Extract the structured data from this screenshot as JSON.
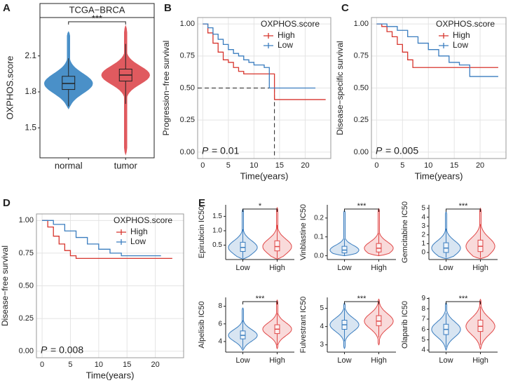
{
  "chart_data": [
    {
      "type": "violin",
      "panel": "A",
      "title": "TCGA−BRCA",
      "y_label": "OXPHOS.score",
      "categories": [
        "normal",
        "tumor"
      ],
      "colors": [
        "#4a90c8",
        "#e05a5f"
      ],
      "fill_opacity": 1,
      "boxes": [
        {
          "low": 1.68,
          "q1": 1.82,
          "median": 1.87,
          "q3": 1.93,
          "high": 2.08
        },
        {
          "low": 1.7,
          "q1": 1.89,
          "median": 1.94,
          "q3": 1.99,
          "high": 2.2
        }
      ],
      "extent": [
        [
          1.66,
          2.3
        ],
        [
          1.28,
          2.35
        ]
      ],
      "significance": "***",
      "ylim": [
        1.25,
        2.42
      ],
      "yticks": [
        1.5,
        1.8,
        2.1
      ]
    },
    {
      "type": "survival",
      "panel": "B",
      "y_label": "Progression−free survival",
      "x_label": "Time(years)",
      "legend_title": "OXPHOS.score",
      "series": [
        {
          "name": "High",
          "color": "#d7352d",
          "x": [
            0,
            1,
            2,
            3,
            4,
            5,
            6,
            7,
            8,
            10,
            12,
            14,
            24
          ],
          "values": [
            1,
            0.93,
            0.85,
            0.78,
            0.72,
            0.7,
            0.66,
            0.63,
            0.61,
            0.61,
            0.61,
            0.41,
            0.41
          ]
        },
        {
          "name": "Low",
          "color": "#3a7dbf",
          "x": [
            0,
            1,
            2,
            3,
            4,
            5,
            6,
            7,
            8,
            9,
            10,
            12,
            13,
            22
          ],
          "values": [
            1,
            0.97,
            0.92,
            0.88,
            0.84,
            0.8,
            0.77,
            0.75,
            0.72,
            0.7,
            0.68,
            0.66,
            0.5,
            0.5
          ]
        }
      ],
      "p_symbol": "P",
      "p_text": "= 0.01",
      "median_x": 14,
      "median_y": 0.5,
      "xlim": [
        -1,
        25
      ],
      "ylim": [
        -0.05,
        1.05
      ],
      "xticks": [
        0,
        5,
        10,
        15,
        20
      ],
      "yticks": [
        {
          "value": 0,
          "label": "0.00"
        },
        {
          "value": 0.25,
          "label": "0.25"
        },
        {
          "value": 0.5,
          "label": "0.50"
        },
        {
          "value": 0.75,
          "label": "0.75"
        },
        {
          "value": 1,
          "label": "1.00"
        }
      ]
    },
    {
      "type": "survival",
      "panel": "C",
      "y_label": "Disease−specific survival",
      "x_label": "Time(years)",
      "legend_title": "OXPHOS.score",
      "series": [
        {
          "name": "High",
          "color": "#d7352d",
          "x": [
            0,
            1,
            2,
            3,
            4,
            5,
            6,
            7,
            8,
            12,
            23.5
          ],
          "values": [
            1,
            0.98,
            0.94,
            0.9,
            0.84,
            0.78,
            0.72,
            0.66,
            0.66,
            0.66,
            0.66
          ]
        },
        {
          "name": "Low",
          "color": "#3a7dbf",
          "x": [
            0,
            2,
            4,
            6,
            8,
            10,
            12,
            14,
            16,
            18,
            23.5
          ],
          "values": [
            1,
            0.98,
            0.95,
            0.9,
            0.85,
            0.8,
            0.75,
            0.7,
            0.68,
            0.59,
            0.59
          ]
        }
      ],
      "p_symbol": "P",
      "p_text": "= 0.005",
      "xlim": [
        -1,
        25
      ],
      "ylim": [
        -0.05,
        1.05
      ],
      "xticks": [
        0,
        5,
        10,
        15,
        20
      ],
      "yticks": [
        {
          "value": 0,
          "label": "0.00"
        },
        {
          "value": 0.25,
          "label": "0.25"
        },
        {
          "value": 0.5,
          "label": "0.50"
        },
        {
          "value": 0.75,
          "label": "0.75"
        },
        {
          "value": 1,
          "label": "1.00"
        }
      ]
    },
    {
      "type": "survival",
      "panel": "D",
      "y_label": "Disease−free survival",
      "x_label": "Time(years)",
      "legend_title": "OXPHOS.score",
      "series": [
        {
          "name": "High",
          "color": "#d7352d",
          "x": [
            0,
            1,
            2,
            3,
            4,
            5,
            6,
            23
          ],
          "values": [
            1,
            0.95,
            0.88,
            0.82,
            0.77,
            0.73,
            0.71,
            0.71
          ]
        },
        {
          "name": "Low",
          "color": "#3a7dbf",
          "x": [
            0,
            2,
            4,
            6,
            8,
            10,
            12,
            14,
            21
          ],
          "values": [
            1,
            0.97,
            0.92,
            0.87,
            0.82,
            0.78,
            0.75,
            0.73,
            0.73
          ]
        }
      ],
      "p_symbol": "P",
      "p_text": "= 0.008",
      "xlim": [
        -1,
        25
      ],
      "ylim": [
        -0.05,
        1.05
      ],
      "xticks": [
        0,
        5,
        10,
        15,
        20
      ],
      "yticks": [
        {
          "value": 0,
          "label": "0.00"
        },
        {
          "value": 0.25,
          "label": "0.25"
        },
        {
          "value": 0.5,
          "label": "0.50"
        },
        {
          "value": 0.75,
          "label": "0.75"
        },
        {
          "value": 1,
          "label": "1.00"
        }
      ]
    },
    {
      "type": "violin",
      "panel": "E",
      "y_label": "Epirubicin IC50",
      "categories": [
        "Low",
        "High"
      ],
      "colors": [
        "#3a7dbf",
        "#e04848"
      ],
      "fill_opacity": 0.2,
      "boxes": [
        {
          "low": 0.05,
          "q1": 0.28,
          "median": 0.42,
          "q3": 0.6,
          "high": 1.05
        },
        {
          "low": 0.05,
          "q1": 0.3,
          "median": 0.45,
          "q3": 0.65,
          "high": 1.2
        }
      ],
      "extent": [
        [
          0.02,
          1.75
        ],
        [
          0.02,
          1.8
        ]
      ],
      "significance": "*",
      "ylim": [
        0,
        1.9
      ],
      "yticks": [
        0.5,
        {
          "value": 1,
          "label": "1.0"
        },
        1.5
      ]
    },
    {
      "type": "violin",
      "y_label": "Vinblastine IC50",
      "categories": [
        "Low",
        "High"
      ],
      "colors": [
        "#3a7dbf",
        "#e04848"
      ],
      "fill_opacity": 0.2,
      "boxes": [
        {
          "low": 0,
          "q1": 0.015,
          "median": 0.03,
          "q3": 0.05,
          "high": 0.09
        },
        {
          "low": 0,
          "q1": 0.02,
          "median": 0.04,
          "q3": 0.065,
          "high": 0.12
        }
      ],
      "extent": [
        [
          0,
          0.24
        ],
        [
          0,
          0.25
        ]
      ],
      "significance": "***",
      "ylim": [
        -0.02,
        0.27
      ],
      "yticks": [
        {
          "value": 0,
          "label": "0.0"
        },
        0.1,
        0.2
      ]
    },
    {
      "type": "violin",
      "y_label": "Gemcitabine IC50",
      "categories": [
        "Low",
        "High"
      ],
      "colors": [
        "#3a7dbf",
        "#e04848"
      ],
      "fill_opacity": 0.2,
      "boxes": [
        {
          "low": -0.6,
          "q1": 0,
          "median": 0.5,
          "q3": 1.1,
          "high": 2.7
        },
        {
          "low": -0.6,
          "q1": 0.1,
          "median": 0.7,
          "q3": 1.4,
          "high": 3.2
        }
      ],
      "extent": [
        [
          -0.7,
          4.6
        ],
        [
          -0.7,
          5
        ]
      ],
      "significance": "***",
      "ylim": [
        -0.8,
        5.4
      ],
      "yticks": [
        0,
        1,
        2,
        3,
        4,
        5
      ]
    },
    {
      "type": "violin",
      "y_label": "Alpelisib IC50",
      "categories": [
        "Low",
        "High"
      ],
      "colors": [
        "#3a7dbf",
        "#e04848"
      ],
      "fill_opacity": 0.2,
      "boxes": [
        {
          "low": 3.2,
          "q1": 4.3,
          "median": 4.7,
          "q3": 5.2,
          "high": 6.4
        },
        {
          "low": 3.6,
          "q1": 4.9,
          "median": 5.4,
          "q3": 5.9,
          "high": 7.2
        }
      ],
      "extent": [
        [
          3,
          7.8
        ],
        [
          3.2,
          8.7
        ]
      ],
      "significance": "***",
      "ylim": [
        2.8,
        9
      ],
      "yticks": [
        4,
        6,
        8
      ]
    },
    {
      "type": "violin",
      "y_label": "Fulvestrant IC50",
      "categories": [
        "Low",
        "High"
      ],
      "colors": [
        "#3a7dbf",
        "#e04848"
      ],
      "fill_opacity": 0.2,
      "boxes": [
        {
          "low": 3.2,
          "q1": 3.85,
          "median": 4.1,
          "q3": 4.35,
          "high": 5
        },
        {
          "low": 3.4,
          "q1": 4.05,
          "median": 4.3,
          "q3": 4.6,
          "high": 5.3
        }
      ],
      "extent": [
        [
          2.8,
          5.3
        ],
        [
          3,
          5.5
        ]
      ],
      "significance": "***",
      "ylim": [
        2.6,
        5.6
      ],
      "yticks": [
        3,
        4,
        5
      ]
    },
    {
      "type": "violin",
      "y_label": "Olaparib IC50",
      "categories": [
        "Low",
        "High"
      ],
      "colors": [
        "#3a7dbf",
        "#e04848"
      ],
      "fill_opacity": 0.2,
      "boxes": [
        {
          "low": 4.3,
          "q1": 5.5,
          "median": 6,
          "q3": 6.5,
          "high": 7.6
        },
        {
          "low": 4.5,
          "q1": 5.8,
          "median": 6.3,
          "q3": 6.9,
          "high": 8.2
        }
      ],
      "extent": [
        [
          4,
          8.6
        ],
        [
          4.1,
          8.9
        ]
      ],
      "significance": "***",
      "ylim": [
        3.8,
        9.1
      ],
      "yticks": [
        4,
        5,
        6,
        7,
        8,
        9
      ]
    }
  ]
}
